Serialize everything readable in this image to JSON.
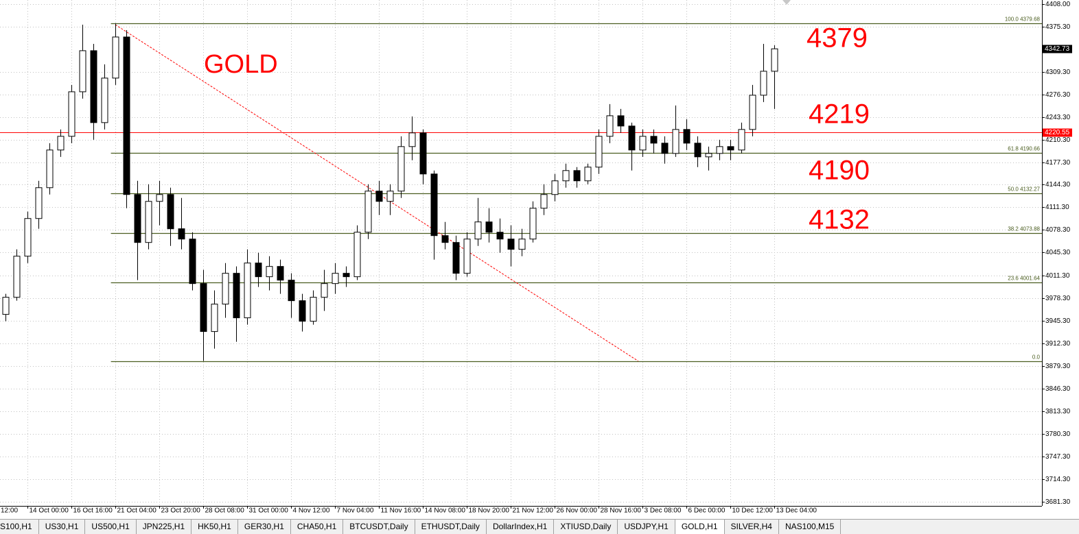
{
  "chart_data": {
    "type": "candlestick",
    "title": "GOLD",
    "annotations": [
      "4379",
      "4219",
      "4190",
      "4132"
    ],
    "open": [
      3955,
      3980,
      4040,
      4095,
      4140,
      4195,
      4215,
      4280,
      4340,
      4235,
      4300,
      4360,
      4130,
      4060,
      4120,
      4130,
      4080,
      4065,
      4000,
      3930,
      3970,
      4015,
      3950,
      4030,
      4010,
      4025,
      4005,
      3975,
      3945,
      3980,
      4000,
      4015,
      4010,
      4075,
      4135,
      4120,
      4135,
      4200,
      4220,
      4160,
      4070,
      4060,
      4015,
      4065,
      4090,
      4075,
      4065,
      4050,
      4065,
      4110,
      4130,
      4150,
      4165,
      4150,
      4170,
      4215,
      4245,
      4230,
      4195,
      4215,
      4205,
      4190,
      4225,
      4205,
      4185,
      4190,
      4200,
      4195,
      4225,
      4275,
      4310
    ],
    "high": [
      3985,
      4050,
      4105,
      4150,
      4205,
      4225,
      4290,
      4378,
      4350,
      4320,
      4380,
      4370,
      4150,
      4145,
      4150,
      4140,
      4125,
      4075,
      4020,
      3990,
      4030,
      4025,
      4050,
      4045,
      4040,
      4035,
      4015,
      3985,
      3990,
      4020,
      4030,
      4025,
      4085,
      4145,
      4150,
      4145,
      4215,
      4244,
      4225,
      4165,
      4090,
      4070,
      4075,
      4125,
      4110,
      4095,
      4085,
      4080,
      4120,
      4145,
      4160,
      4175,
      4170,
      4175,
      4225,
      4262,
      4255,
      4235,
      4225,
      4225,
      4215,
      4260,
      4240,
      4215,
      4200,
      4210,
      4210,
      4235,
      4290,
      4350,
      4348
    ],
    "low": [
      3945,
      3975,
      4030,
      4080,
      4130,
      4185,
      4205,
      4270,
      4210,
      4225,
      4290,
      4110,
      4005,
      4050,
      4085,
      4055,
      4050,
      3990,
      3887,
      3905,
      3950,
      3915,
      3940,
      3995,
      3990,
      3985,
      3950,
      3930,
      3940,
      3960,
      3985,
      3995,
      4005,
      4065,
      4100,
      4100,
      4125,
      4180,
      4145,
      4035,
      4050,
      4005,
      4010,
      4055,
      4060,
      4045,
      4025,
      4040,
      4060,
      4100,
      4120,
      4140,
      4140,
      4145,
      4160,
      4205,
      4220,
      4165,
      4185,
      4190,
      4175,
      4185,
      4195,
      4170,
      4165,
      4180,
      4180,
      4190,
      4215,
      4265,
      4255
    ],
    "close": [
      3980,
      4040,
      4095,
      4140,
      4195,
      4215,
      4280,
      4340,
      4235,
      4300,
      4360,
      4130,
      4060,
      4120,
      4130,
      4080,
      4065,
      4000,
      3930,
      3970,
      4015,
      3950,
      4030,
      4010,
      4025,
      4005,
      3975,
      3945,
      3980,
      4000,
      4015,
      4010,
      4075,
      4135,
      4120,
      4135,
      4200,
      4220,
      4160,
      4070,
      4060,
      4015,
      4065,
      4090,
      4075,
      4065,
      4050,
      4065,
      4110,
      4130,
      4150,
      4165,
      4150,
      4170,
      4215,
      4245,
      4230,
      4195,
      4215,
      4205,
      4190,
      4225,
      4205,
      4185,
      4190,
      4200,
      4195,
      4225,
      4275,
      4310,
      4342.73
    ],
    "xlim": [
      -0.5,
      94.375
    ],
    "xticks": [
      {
        "value": -2,
        "label": "12:00"
      },
      {
        "value": 2,
        "label": "14 Oct 00:00"
      },
      {
        "value": 6,
        "label": "16 Oct 16:00"
      },
      {
        "value": 10,
        "label": "21 Oct 04:00"
      },
      {
        "value": 14,
        "label": "23 Oct 20:00"
      },
      {
        "value": 18,
        "label": "28 Oct 08:00"
      },
      {
        "value": 22,
        "label": "31 Oct 00:00"
      },
      {
        "value": 26,
        "label": "4 Nov 12:00"
      },
      {
        "value": 30,
        "label": "7 Nov 04:00"
      },
      {
        "value": 34,
        "label": "11 Nov 16:00"
      },
      {
        "value": 38,
        "label": "14 Nov 08:00"
      },
      {
        "value": 42,
        "label": "18 Nov 20:00"
      },
      {
        "value": 46,
        "label": "21 Nov 12:00"
      },
      {
        "value": 50,
        "label": "26 Nov 00:00"
      },
      {
        "value": 54,
        "label": "28 Nov 16:00"
      },
      {
        "value": 58,
        "label": "3 Dec 08:00"
      },
      {
        "value": 62,
        "label": "6 Dec 00:00"
      },
      {
        "value": 66,
        "label": "10 Dec 12:00"
      },
      {
        "value": 70,
        "label": "13 Dec 04:00"
      }
    ],
    "ylim": [
      3675.4,
      4414
    ],
    "yticks": [
      {
        "value": 4408,
        "label": "4408.00"
      },
      {
        "value": 4375.3,
        "label": "4375.30"
      },
      {
        "value": 4309.3,
        "label": "4309.30"
      },
      {
        "value": 4276.3,
        "label": "4276.30"
      },
      {
        "value": 4243.3,
        "label": "4243.30"
      },
      {
        "value": 4210.3,
        "label": "4210.30"
      },
      {
        "value": 4177.3,
        "label": "4177.30"
      },
      {
        "value": 4144.3,
        "label": "4144.30"
      },
      {
        "value": 4111.3,
        "label": "4111.30"
      },
      {
        "value": 4078.3,
        "label": "4078.30"
      },
      {
        "value": 4045.3,
        "label": "4045.30"
      },
      {
        "value": 4011.3,
        "label": "4011.30"
      },
      {
        "value": 3978.3,
        "label": "3978.30"
      },
      {
        "value": 3945.3,
        "label": "3945.30"
      },
      {
        "value": 3912.3,
        "label": "3912.30"
      },
      {
        "value": 3879.3,
        "label": "3879.30"
      },
      {
        "value": 3846.3,
        "label": "3846.30"
      },
      {
        "value": 3813.3,
        "label": "3813.30"
      },
      {
        "value": 3780.3,
        "label": "3780.30"
      },
      {
        "value": 3747.3,
        "label": "3747.30"
      },
      {
        "value": 3714.3,
        "label": "3714.30"
      },
      {
        "value": 3681.3,
        "label": "3681.30"
      }
    ],
    "grid": true,
    "fib_start": 9.6,
    "fib_levels": [
      {
        "label": "100.0 4379.68",
        "value": 4379.68
      },
      {
        "label": "61.8 4190.66",
        "value": 4190.66
      },
      {
        "label": "50.0 4132.27",
        "value": 4132.27
      },
      {
        "label": "38.2 4073.88",
        "value": 4073.88
      },
      {
        "label": "23.6 4001.64",
        "value": 4001.64
      },
      {
        "label": "0.0",
        "value": 3887
      }
    ],
    "fib_color": "#4b5e20",
    "horizontal_line": 4220.55,
    "horizontal_line_color": "#ff0000",
    "last_price": 4342.73,
    "trendline": {
      "x": [
        10,
        57.6
      ],
      "y": [
        4378,
        3887
      ]
    }
  },
  "tabs": [
    "S100,H1",
    "US30,H1",
    "US500,H1",
    "JPN225,H1",
    "HK50,H1",
    "GER30,H1",
    "CHA50,H1",
    "BTCUSDT,Daily",
    "ETHUSDT,Daily",
    "DollarIndex,H1",
    "XTIUSD,Daily",
    "USDJPY,H1",
    "GOLD,H1",
    "SILVER,H4",
    "NAS100,M15"
  ]
}
